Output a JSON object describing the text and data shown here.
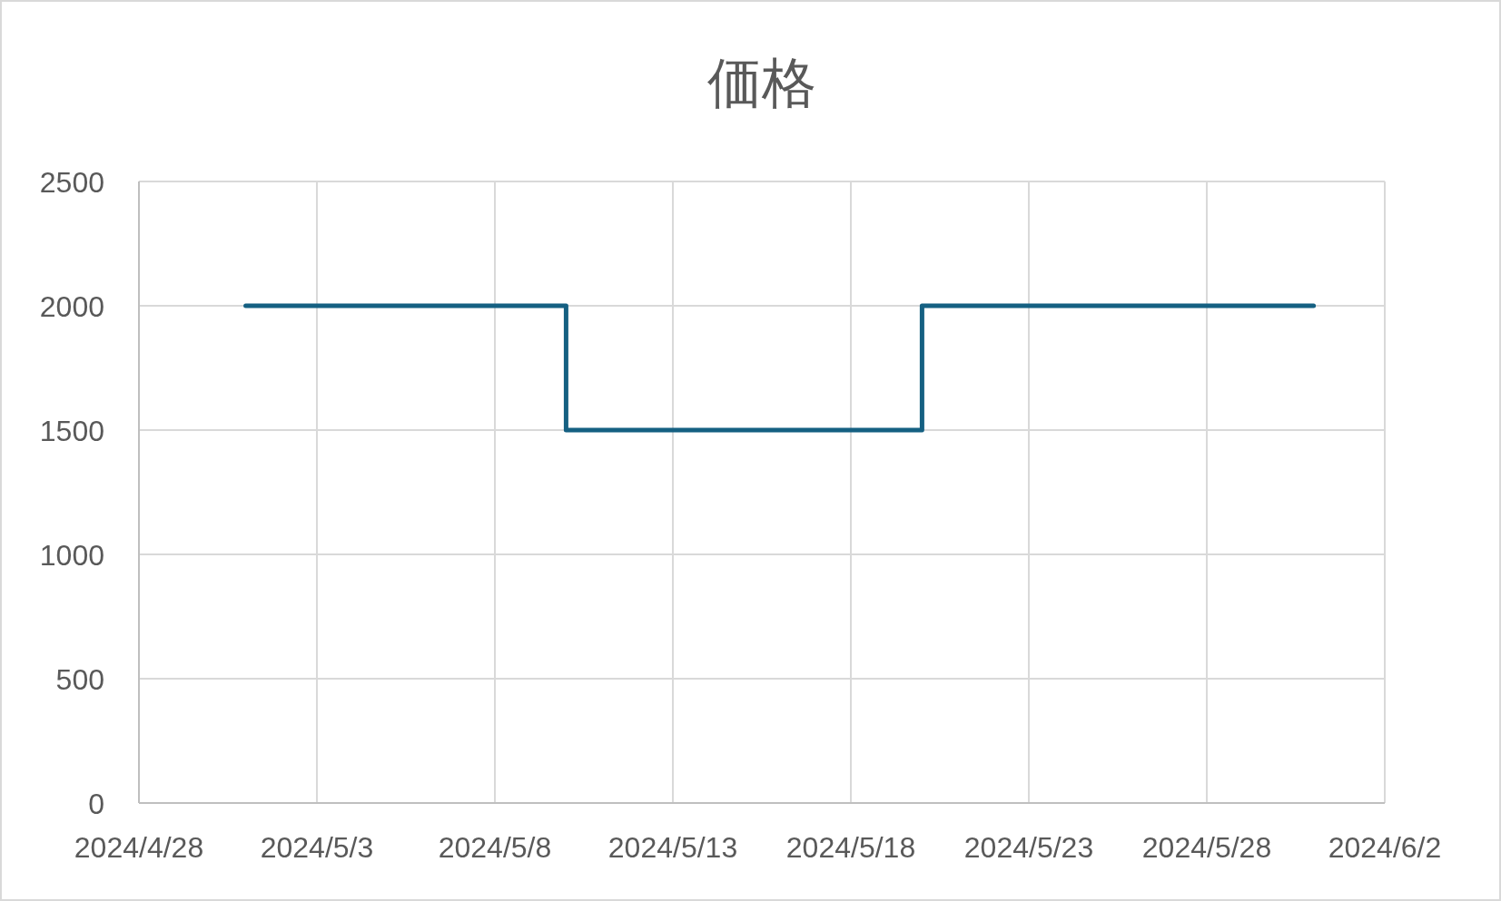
{
  "chart_data": {
    "type": "step",
    "title": "価格",
    "x": [
      "2024-05-01",
      "2024-05-10",
      "2024-05-20",
      "2024-05-31"
    ],
    "series": [
      {
        "color": "#156082",
        "values": [
          2000,
          1500,
          2000,
          2000
        ]
      }
    ],
    "xlim": [
      "2024-04-28",
      "2024-06-02"
    ],
    "xticks": [
      {
        "value": "2024-04-28",
        "label": "2024/4/28"
      },
      {
        "value": "2024-05-03",
        "label": "2024/5/3"
      },
      {
        "value": "2024-05-08",
        "label": "2024/5/8"
      },
      {
        "value": "2024-05-13",
        "label": "2024/5/13"
      },
      {
        "value": "2024-05-18",
        "label": "2024/5/18"
      },
      {
        "value": "2024-05-23",
        "label": "2024/5/23"
      },
      {
        "value": "2024-05-28",
        "label": "2024/5/28"
      },
      {
        "value": "2024-06-02",
        "label": "2024/6/2"
      }
    ],
    "ylim": [
      0,
      2500
    ],
    "yticks": [
      0,
      500,
      1000,
      1500,
      2000,
      2500
    ],
    "grid": true,
    "marker": "none",
    "line_style": "solid"
  }
}
